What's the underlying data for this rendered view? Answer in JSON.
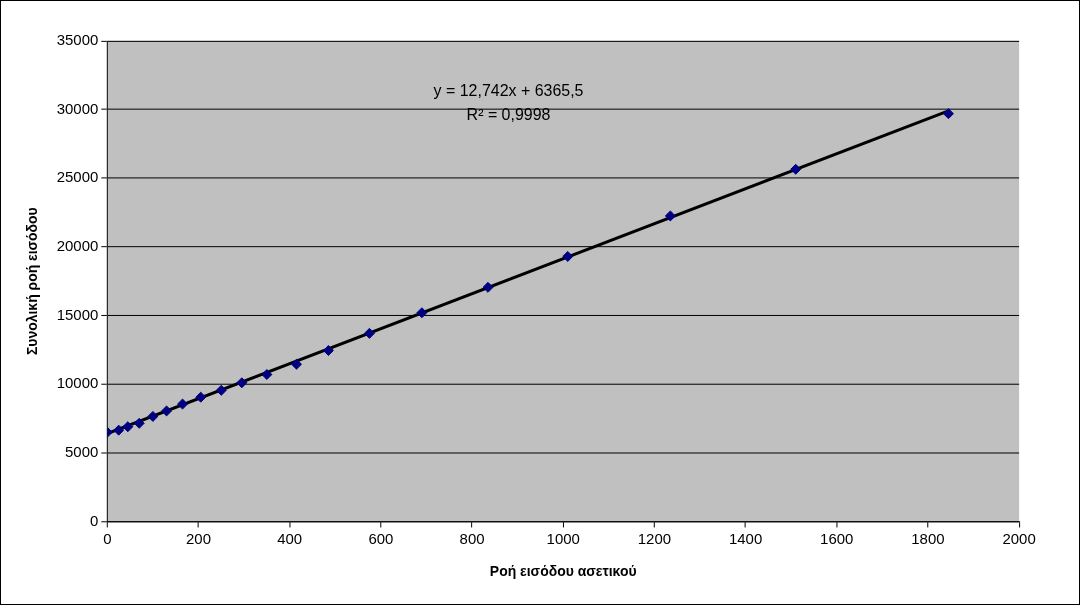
{
  "chart_data": {
    "type": "scatter",
    "xlabel": "Ροή εισόδου ασετικού",
    "ylabel": "Συνολική ροή εισόδου",
    "annotations": [
      "y = 12,742x + 6365,5",
      "R² = 0,9998"
    ],
    "series": [
      {
        "type": "scatter",
        "color": "#000080",
        "marker": "diamond",
        "x": [
          0,
          25,
          45,
          70,
          100,
          130,
          165,
          205,
          250,
          295,
          350,
          415,
          485,
          575,
          690,
          835,
          1010,
          1235,
          1510,
          1845
        ],
        "values": [
          6500,
          6650,
          6900,
          7150,
          7650,
          8050,
          8550,
          9050,
          9550,
          10100,
          10700,
          11450,
          12450,
          13700,
          15200,
          17050,
          19300,
          22250,
          25650,
          29700
        ]
      },
      {
        "type": "line",
        "color": "#000000",
        "marker": "none",
        "line_style": "solid",
        "x": [
          0,
          1845
        ],
        "values": [
          6400,
          29900
        ]
      }
    ],
    "xlim": [
      0,
      2000
    ],
    "xticks": [
      0,
      200,
      400,
      600,
      800,
      1000,
      1200,
      1400,
      1600,
      1800,
      2000
    ],
    "ylim": [
      0,
      35000
    ],
    "yticks": [
      0,
      5000,
      10000,
      15000,
      20000,
      25000,
      30000,
      35000
    ],
    "grid": "y",
    "legend": false
  }
}
